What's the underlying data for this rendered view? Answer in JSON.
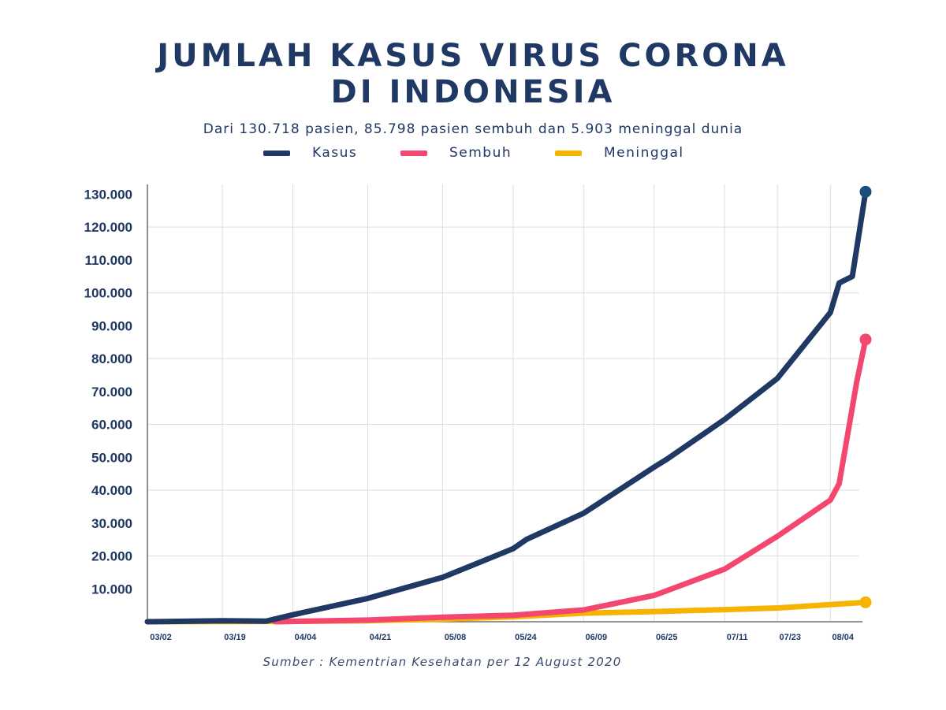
{
  "title_line1": "JUMLAH KASUS VIRUS CORONA",
  "title_line2": "DI INDONESIA",
  "subtitle": "Dari 130.718 pasien, 85.798 pasien sembuh dan 5.903 meninggal dunia",
  "source": "Sumber : Kementrian Kesehatan per 12 August 2020",
  "legend": [
    {
      "label": "Kasus",
      "color": "#1f3864"
    },
    {
      "label": "Sembuh",
      "color": "#f4476f"
    },
    {
      "label": "Meninggal",
      "color": "#f6b300"
    }
  ],
  "chart_data": {
    "type": "line",
    "title": "JUMLAH KASUS VIRUS CORONA DI INDONESIA",
    "subtitle": "Dari 130.718 pasien, 85.798 pasien sembuh dan 5.903 meninggal dunia",
    "x_tick_labels": [
      "03/02",
      "03/19",
      "04/04",
      "04/21",
      "05/08",
      "05/24",
      "06/09",
      "06/25",
      "07/11",
      "07/23",
      "08/04"
    ],
    "y_tick_labels": [
      "10.000",
      "20.000",
      "30.000",
      "40.000",
      "50.000",
      "60.000",
      "70.000",
      "80.000",
      "90.000",
      "100.000",
      "110.000",
      "120.000",
      "130.000"
    ],
    "ylim": [
      0,
      132000
    ],
    "grid": true,
    "legend_position": "top-center",
    "series": [
      {
        "name": "Kasus",
        "color": "#1f3864",
        "end_marker_color": "#1a4f7a",
        "points": [
          [
            "2020-03-02",
            0
          ],
          [
            "2020-03-19",
            300
          ],
          [
            "2020-03-29",
            200
          ],
          [
            "2020-04-04",
            2100
          ],
          [
            "2020-04-21",
            7100
          ],
          [
            "2020-05-08",
            13500
          ],
          [
            "2020-05-24",
            22200
          ],
          [
            "2020-05-27",
            25000
          ],
          [
            "2020-06-09",
            33000
          ],
          [
            "2020-06-25",
            47000
          ],
          [
            "2020-06-28",
            49500
          ],
          [
            "2020-07-11",
            61500
          ],
          [
            "2020-07-23",
            74000
          ],
          [
            "2020-08-04",
            94000
          ],
          [
            "2020-08-06",
            103000
          ],
          [
            "2020-08-09",
            105000
          ],
          [
            "2020-08-12",
            130718
          ]
        ]
      },
      {
        "name": "Sembuh",
        "color": "#f4476f",
        "end_marker_color": "#f4476f",
        "points": [
          [
            "2020-03-31",
            0
          ],
          [
            "2020-04-21",
            500
          ],
          [
            "2020-05-08",
            1400
          ],
          [
            "2020-05-24",
            2000
          ],
          [
            "2020-06-09",
            3600
          ],
          [
            "2020-06-25",
            8000
          ],
          [
            "2020-07-11",
            16000
          ],
          [
            "2020-07-23",
            26000
          ],
          [
            "2020-08-04",
            37000
          ],
          [
            "2020-08-06",
            42000
          ],
          [
            "2020-08-10",
            73000
          ],
          [
            "2020-08-12",
            85798
          ]
        ]
      },
      {
        "name": "Meninggal",
        "color": "#f6b300",
        "end_marker_color": "#f6b300",
        "points": [
          [
            "2020-03-02",
            0
          ],
          [
            "2020-04-04",
            100
          ],
          [
            "2020-04-21",
            300
          ],
          [
            "2020-05-08",
            800
          ],
          [
            "2020-05-24",
            1500
          ],
          [
            "2020-06-09",
            2600
          ],
          [
            "2020-06-25",
            3100
          ],
          [
            "2020-07-11",
            3700
          ],
          [
            "2020-07-23",
            4200
          ],
          [
            "2020-08-04",
            5200
          ],
          [
            "2020-08-12",
            5903
          ]
        ]
      }
    ]
  }
}
